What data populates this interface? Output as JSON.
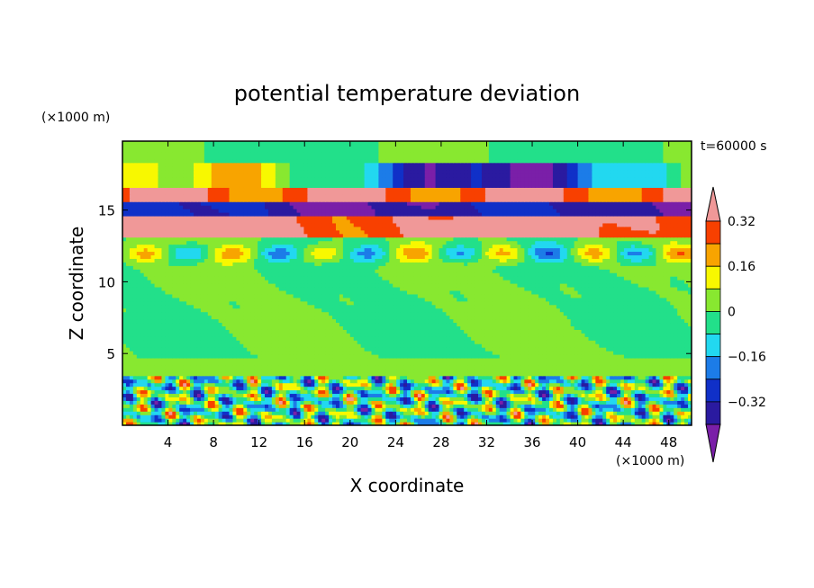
{
  "chart_data": {
    "type": "heatmap",
    "title": "potential temperature deviation",
    "xlabel": "X coordinate",
    "ylabel": "Z coordinate",
    "x_unit": "(×1000 m)",
    "y_unit": "(×1000 m)",
    "time_label": "t=60000 s",
    "xlim": [
      0,
      50
    ],
    "ylim": [
      0,
      19.8
    ],
    "x_ticks": [
      4,
      8,
      12,
      16,
      20,
      24,
      28,
      32,
      36,
      40,
      44,
      48
    ],
    "y_ticks": [
      5,
      10,
      15
    ],
    "grid": false,
    "colorbar": {
      "position": "right",
      "levels": [
        -0.4,
        -0.32,
        -0.24,
        -0.16,
        -0.08,
        0,
        0.08,
        0.16,
        0.24,
        0.32,
        0.4
      ],
      "tick_labels": [
        "0.32",
        "0.16",
        "0",
        "−0.16",
        "−0.32"
      ],
      "tick_values": [
        0.32,
        0.16,
        0,
        -0.16,
        -0.32
      ],
      "colors": [
        "#7a1fa8",
        "#2a1aa0",
        "#1030c8",
        "#1c7ce8",
        "#22d8f0",
        "#22e08a",
        "#88e830",
        "#f8f800",
        "#f8a400",
        "#f84000",
        "#f09898"
      ]
    },
    "bands": [
      {
        "z": [
          0,
          3.5
        ],
        "description_level": "mixed"
      },
      {
        "z": [
          3.5,
          13.2
        ],
        "level": 0
      },
      {
        "z": [
          13.2,
          16.5
        ],
        "level": "strong"
      },
      {
        "z": [
          16.5,
          19.8
        ],
        "level": 0
      }
    ]
  }
}
